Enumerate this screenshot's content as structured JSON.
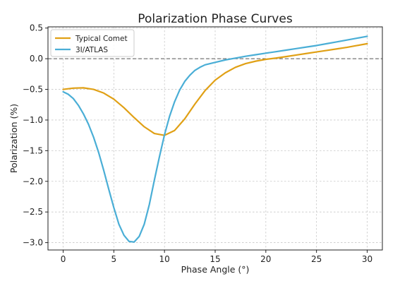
{
  "chart_data": {
    "type": "line",
    "title": "Polarization Phase Curves",
    "xlabel": "Phase Angle (°)",
    "ylabel": "Polarization (%)",
    "xlim": [
      -1.5,
      31.5
    ],
    "ylim": [
      -3.12,
      0.52
    ],
    "xticks": [
      0,
      5,
      10,
      15,
      20,
      25,
      30
    ],
    "yticks": [
      0.5,
      0.0,
      -0.5,
      -1.0,
      -1.5,
      -2.0,
      -2.5,
      -3.0
    ],
    "xtick_labels": [
      "0",
      "5",
      "10",
      "15",
      "20",
      "25",
      "30"
    ],
    "ytick_labels": [
      "0.5",
      "0.0",
      "−0.5",
      "−1.0",
      "−1.5",
      "−2.0",
      "−2.5",
      "−3.0"
    ],
    "grid": true,
    "legend_position": "top-left",
    "reference_line": {
      "y": 0.0,
      "style": "dashed"
    },
    "series": [
      {
        "name": "Typical Comet",
        "color": "#e0a015",
        "points": [
          [
            0,
            -0.5
          ],
          [
            1,
            -0.48
          ],
          [
            2,
            -0.475
          ],
          [
            3,
            -0.5
          ],
          [
            4,
            -0.56
          ],
          [
            5,
            -0.66
          ],
          [
            6,
            -0.8
          ],
          [
            7,
            -0.96
          ],
          [
            8,
            -1.11
          ],
          [
            9,
            -1.22
          ],
          [
            10,
            -1.25
          ],
          [
            11,
            -1.17
          ],
          [
            12,
            -0.98
          ],
          [
            13,
            -0.74
          ],
          [
            14,
            -0.52
          ],
          [
            15,
            -0.35
          ],
          [
            16,
            -0.23
          ],
          [
            17,
            -0.14
          ],
          [
            18,
            -0.08
          ],
          [
            19,
            -0.04
          ],
          [
            20,
            -0.01
          ],
          [
            21,
            0.01
          ],
          [
            22,
            0.035
          ],
          [
            23,
            0.06
          ],
          [
            24,
            0.085
          ],
          [
            25,
            0.11
          ],
          [
            26,
            0.135
          ],
          [
            27,
            0.16
          ],
          [
            28,
            0.185
          ],
          [
            29,
            0.215
          ],
          [
            30,
            0.245
          ]
        ]
      },
      {
        "name": "3I/ATLAS",
        "color": "#4aaed6",
        "points": [
          [
            0,
            -0.54
          ],
          [
            0.5,
            -0.58
          ],
          [
            1,
            -0.65
          ],
          [
            1.5,
            -0.76
          ],
          [
            2,
            -0.9
          ],
          [
            2.5,
            -1.07
          ],
          [
            3,
            -1.28
          ],
          [
            3.5,
            -1.53
          ],
          [
            4,
            -1.82
          ],
          [
            4.5,
            -2.13
          ],
          [
            5,
            -2.43
          ],
          [
            5.5,
            -2.7
          ],
          [
            6,
            -2.88
          ],
          [
            6.5,
            -2.98
          ],
          [
            7,
            -2.99
          ],
          [
            7.5,
            -2.9
          ],
          [
            8,
            -2.7
          ],
          [
            8.5,
            -2.38
          ],
          [
            9,
            -1.98
          ],
          [
            9.5,
            -1.6
          ],
          [
            10,
            -1.24
          ],
          [
            10.5,
            -0.94
          ],
          [
            11,
            -0.7
          ],
          [
            11.5,
            -0.51
          ],
          [
            12,
            -0.37
          ],
          [
            12.5,
            -0.27
          ],
          [
            13,
            -0.19
          ],
          [
            13.5,
            -0.14
          ],
          [
            14,
            -0.1
          ],
          [
            15,
            -0.06
          ],
          [
            16,
            -0.02
          ],
          [
            17,
            0.01
          ],
          [
            18,
            0.04
          ],
          [
            19,
            0.065
          ],
          [
            20,
            0.09
          ],
          [
            21,
            0.115
          ],
          [
            22,
            0.14
          ],
          [
            23,
            0.165
          ],
          [
            24,
            0.19
          ],
          [
            25,
            0.215
          ],
          [
            26,
            0.245
          ],
          [
            27,
            0.275
          ],
          [
            28,
            0.305
          ],
          [
            29,
            0.335
          ],
          [
            30,
            0.365
          ]
        ]
      }
    ]
  }
}
